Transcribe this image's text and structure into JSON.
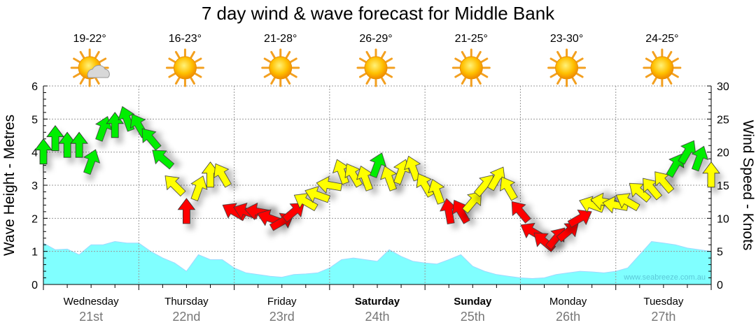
{
  "chart_data": {
    "type": "line",
    "title": "7 day wind & wave forecast for Middle Bank",
    "ylabel": "Wave Height - Metres",
    "y2label": "Wind Speed - Knots",
    "ylim": [
      0,
      6
    ],
    "y2lim": [
      0,
      30
    ],
    "yticks": [
      "0",
      "1",
      "2",
      "3",
      "4",
      "5",
      "6"
    ],
    "y2ticks": [
      "0",
      "5",
      "10",
      "15",
      "20",
      "25",
      "30"
    ],
    "watermark": "www.seabreeze.com.au",
    "days": [
      {
        "name": "Wednesday",
        "date": "21st",
        "bold": false,
        "temp": "19-22°",
        "icon": "partly-cloudy"
      },
      {
        "name": "Thursday",
        "date": "22nd",
        "bold": false,
        "temp": "16-23°",
        "icon": "sunny"
      },
      {
        "name": "Friday",
        "date": "23rd",
        "bold": false,
        "temp": "21-28°",
        "icon": "sunny"
      },
      {
        "name": "Saturday",
        "date": "24th",
        "bold": true,
        "temp": "26-29°",
        "icon": "sunny"
      },
      {
        "name": "Sunday",
        "date": "25th",
        "bold": true,
        "temp": "21-25°",
        "icon": "sunny"
      },
      {
        "name": "Monday",
        "date": "26th",
        "bold": false,
        "temp": "23-30°",
        "icon": "sunny"
      },
      {
        "name": "Tuesday",
        "date": "27th",
        "bold": false,
        "temp": "24-25°",
        "icon": "sunny"
      }
    ],
    "series": [
      {
        "name": "Wave height (m)",
        "color": "#80ffff",
        "values": [
          1.25,
          1.05,
          1.07,
          0.9,
          1.2,
          1.2,
          1.3,
          1.25,
          1.25,
          1.0,
          0.8,
          0.65,
          0.4,
          0.9,
          0.75,
          0.75,
          0.5,
          0.35,
          0.3,
          0.25,
          0.22,
          0.3,
          0.32,
          0.35,
          0.5,
          0.75,
          0.8,
          0.75,
          0.7,
          1.05,
          0.85,
          0.7,
          0.65,
          0.62,
          0.75,
          0.9,
          0.55,
          0.4,
          0.3,
          0.25,
          0.2,
          0.18,
          0.2,
          0.3,
          0.35,
          0.4,
          0.38,
          0.35,
          0.4,
          0.5,
          0.9,
          1.3,
          1.25,
          1.2,
          1.1,
          1.05,
          1.0
        ]
      },
      {
        "name": "Wind speed (knots)",
        "values": [
          20,
          22,
          21,
          21,
          18.5,
          23.5,
          24,
          25,
          24,
          22,
          19,
          15,
          11,
          14.5,
          16.5,
          16.5,
          11,
          11,
          11,
          10,
          9.5,
          11,
          12.5,
          13.5,
          15,
          17,
          16.5,
          16,
          18,
          16,
          17,
          17.5,
          15,
          14,
          11,
          11,
          12.5,
          15,
          16,
          14.5,
          11,
          8,
          6.5,
          7,
          8,
          10,
          12,
          12.5,
          12,
          12.5,
          14,
          14.5,
          15.5,
          18,
          20,
          19,
          16.5
        ],
        "direction_deg": [
          0,
          0,
          0,
          0,
          20,
          20,
          0,
          -20,
          -30,
          -40,
          -50,
          -45,
          0,
          20,
          0,
          -30,
          -60,
          -70,
          -80,
          -70,
          60,
          50,
          -60,
          -70,
          -80,
          -20,
          -30,
          -20,
          20,
          -20,
          20,
          -20,
          -30,
          -20,
          -10,
          -30,
          40,
          40,
          30,
          -30,
          -40,
          -60,
          -50,
          40,
          50,
          60,
          -70,
          -80,
          -80,
          -60,
          -50,
          -40,
          -40,
          30,
          30,
          20,
          0
        ],
        "colors": {
          "high": "#00ee00",
          "mid": "#ffff00",
          "low": "#ff0000"
        }
      }
    ]
  }
}
